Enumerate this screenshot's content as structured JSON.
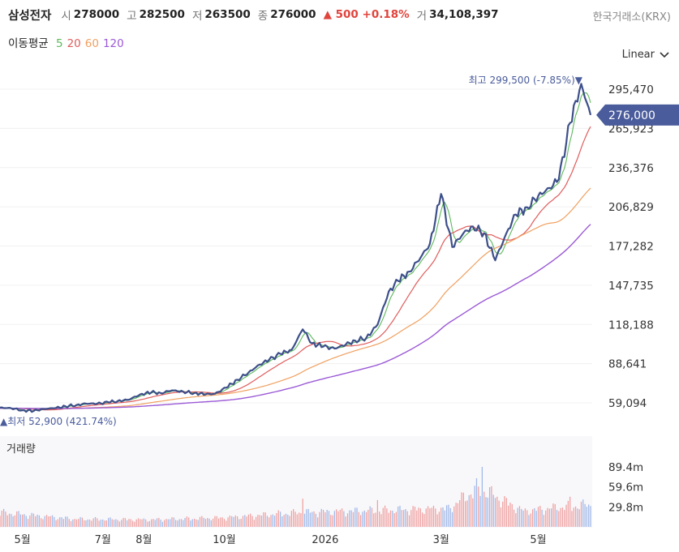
{
  "header": {
    "name": "삼성전자",
    "open_label": "시",
    "open": "278000",
    "high_label": "고",
    "high": "282500",
    "low_label": "저",
    "low": "263500",
    "close_label": "종",
    "close": "276000",
    "change": "▲ 500 +0.18%",
    "volume_label": "거",
    "volume": "34,108,397",
    "exchange": "한국거래소(KRX)"
  },
  "moving_average": {
    "label": "이동평균",
    "periods": [
      {
        "label": "5",
        "color": "#5cb85c"
      },
      {
        "label": "20",
        "color": "#e05c5c"
      },
      {
        "label": "60",
        "color": "#f0a060"
      },
      {
        "label": "120",
        "color": "#9b59d6"
      }
    ]
  },
  "scale": {
    "label": "Linear",
    "icon": "chevron-down-icon"
  },
  "price_axis_labels": [
    "295,470",
    "265,923",
    "236,376",
    "206,829",
    "177,282",
    "147,735",
    "118,188",
    "88,641",
    "59,094"
  ],
  "current_price_tag": "276,000",
  "annotations": {
    "max": "최고 299,500 (-7.85%)▼",
    "min": "▲최저 52,900 (421.74%)"
  },
  "volume_panel": {
    "title": "거래량",
    "axis_labels": [
      "89.4m",
      "59.6m",
      "29.8m"
    ]
  },
  "time_axis_labels": [
    "5월",
    "7월",
    "8월",
    "10월",
    "2026",
    "3월",
    "5월"
  ],
  "colors": {
    "price_line": "#3d4f8a",
    "volume_up": "#f0a0a0",
    "volume_down": "#a0b8e8",
    "tag": "#4a5c9c"
  },
  "chart_data": {
    "type": "line",
    "x_unit": "trading day index (~13 months, Apr 2025 – May 2026)",
    "ylim": [
      52900,
      299500
    ],
    "price_anchors": [
      [
        0,
        55500
      ],
      [
        6,
        55000
      ],
      [
        12,
        53500
      ],
      [
        18,
        53000
      ],
      [
        23,
        54500
      ],
      [
        29,
        55000
      ],
      [
        35,
        56500
      ],
      [
        41,
        57500
      ],
      [
        46,
        58500
      ],
      [
        52,
        58500
      ],
      [
        58,
        59500
      ],
      [
        63,
        60500
      ],
      [
        69,
        61500
      ],
      [
        75,
        65500
      ],
      [
        81,
        67000
      ],
      [
        86,
        66500
      ],
      [
        92,
        68500
      ],
      [
        98,
        67500
      ],
      [
        104,
        66500
      ],
      [
        110,
        65500
      ],
      [
        115,
        66000
      ],
      [
        121,
        70500
      ],
      [
        127,
        76500
      ],
      [
        133,
        82000
      ],
      [
        139,
        88000
      ],
      [
        144,
        91500
      ],
      [
        150,
        96000
      ],
      [
        156,
        99000
      ],
      [
        162,
        114500
      ],
      [
        167,
        104000
      ],
      [
        173,
        101500
      ],
      [
        179,
        100000
      ],
      [
        185,
        103000
      ],
      [
        190,
        106000
      ],
      [
        196,
        108000
      ],
      [
        202,
        118000
      ],
      [
        208,
        143000
      ],
      [
        213,
        151000
      ],
      [
        219,
        158000
      ],
      [
        225,
        168500
      ],
      [
        230,
        179000
      ],
      [
        236,
        216500
      ],
      [
        242,
        176500
      ],
      [
        248,
        187000
      ],
      [
        253,
        192000
      ],
      [
        259,
        187000
      ],
      [
        265,
        166500
      ],
      [
        271,
        187000
      ],
      [
        276,
        201000
      ],
      [
        282,
        206500
      ],
      [
        288,
        215000
      ],
      [
        294,
        221000
      ],
      [
        299,
        227500
      ],
      [
        305,
        270000
      ],
      [
        311,
        299500
      ],
      [
        316,
        276000
      ]
    ],
    "series": [
      {
        "name": "5",
        "period": 5
      },
      {
        "name": "20",
        "period": 20
      },
      {
        "name": "60",
        "period": 60
      },
      {
        "name": "120",
        "period": 120
      }
    ],
    "volume_ylim": [
      0,
      100000000
    ],
    "volume_anchors": [
      [
        0,
        22000000
      ],
      [
        40,
        12000000
      ],
      [
        80,
        11000000
      ],
      [
        120,
        14000000
      ],
      [
        160,
        22000000
      ],
      [
        200,
        25000000
      ],
      [
        240,
        28000000
      ],
      [
        256,
        60000000
      ],
      [
        280,
        24000000
      ],
      [
        300,
        30000000
      ],
      [
        316,
        34108397
      ]
    ],
    "volume_spikes": [
      [
        162,
        42000000
      ],
      [
        202,
        40000000
      ],
      [
        256,
        60000000
      ],
      [
        258,
        89400000
      ],
      [
        305,
        45000000
      ]
    ]
  }
}
